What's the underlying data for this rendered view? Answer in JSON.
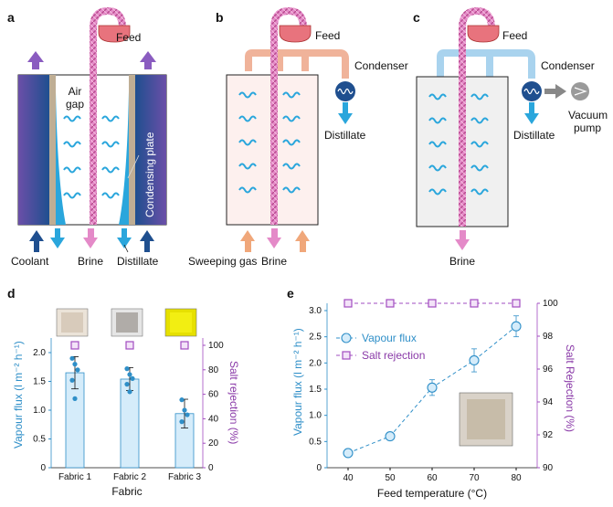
{
  "panels": {
    "a": {
      "letter": "a",
      "labels": {
        "feed": "Feed",
        "air_gap_line1": "Air",
        "air_gap_line2": "gap",
        "condensing_plate": "Condensing plate",
        "coolant": "Coolant",
        "brine": "Brine",
        "distillate": "Distillate"
      }
    },
    "b": {
      "letter": "b",
      "labels": {
        "feed": "Feed",
        "condenser": "Condenser",
        "distillate": "Distillate",
        "sweeping_gas": "Sweeping gas",
        "brine": "Brine"
      }
    },
    "c": {
      "letter": "c",
      "labels": {
        "feed": "Feed",
        "condenser": "Condenser",
        "distillate": "Distillate",
        "vacuum_pump_line1": "Vacuum",
        "vacuum_pump_line2": "pump",
        "brine": "Brine"
      }
    },
    "d": {
      "letter": "d"
    },
    "e": {
      "letter": "e"
    }
  },
  "colors": {
    "coolant_blue": "#1f4f8f",
    "stream_blue": "#2aa6dc",
    "feed_pink": "#e48ac8",
    "vapour_purple": "#8a5cc0",
    "sweeping_orange": "#f0a77a",
    "salt_purple": "#a24cc0",
    "flux_blue": "#2f8fc8"
  },
  "chart_data": [
    {
      "type": "bar",
      "panel": "d",
      "xlabel": "Fabric",
      "ylabel": "Vapour flux (l m⁻² h⁻¹)",
      "ylabel2": "Salt rejection (%)",
      "categories": [
        "Fabric 1",
        "Fabric 2",
        "Fabric 3"
      ],
      "series": [
        {
          "name": "Vapour flux",
          "axis": "left",
          "values": [
            1.65,
            1.54,
            0.94
          ],
          "errors": [
            0.28,
            0.2,
            0.25
          ],
          "points": [
            [
              1.9,
              1.8,
              1.7,
              1.52,
              1.2
            ],
            [
              1.72,
              1.62,
              1.55,
              1.45,
              1.32
            ],
            [
              1.18,
              1.0,
              0.92,
              0.8
            ]
          ]
        },
        {
          "name": "Salt rejection",
          "axis": "right",
          "values": [
            100,
            100,
            100
          ]
        }
      ],
      "y_ticks": [
        "0",
        "0.5",
        "1.0",
        "1.5",
        "2.0"
      ],
      "y2_ticks": [
        "0",
        "20",
        "40",
        "60",
        "80",
        "100"
      ],
      "ylim": [
        0,
        2.3
      ],
      "y2lim": [
        0,
        115
      ],
      "grid": false
    },
    {
      "type": "line",
      "panel": "e",
      "xlabel": "Feed temperature (°C)",
      "ylabel": "Vapour flux (l m⁻² h⁻¹)",
      "ylabel2": "Salt Rejection (%)",
      "x": [
        40,
        50,
        60,
        70,
        80
      ],
      "series": [
        {
          "name": "Vapour flux",
          "axis": "left",
          "values": [
            0.28,
            0.6,
            1.53,
            2.05,
            2.7
          ],
          "errors": [
            0.05,
            0.05,
            0.15,
            0.22,
            0.2
          ]
        },
        {
          "name": "Salt rejection",
          "axis": "right",
          "values": [
            100,
            100,
            100,
            100,
            100
          ]
        }
      ],
      "x_ticks": [
        "40",
        "50",
        "60",
        "70",
        "80"
      ],
      "y_ticks": [
        "0",
        "0.5",
        "1.0",
        "1.5",
        "2.0",
        "2.5",
        "3.0"
      ],
      "y2_ticks": [
        "90",
        "92",
        "94",
        "96",
        "98",
        "100"
      ],
      "xlim": [
        35,
        85
      ],
      "ylim": [
        0,
        3.2
      ],
      "y2lim": [
        90,
        100.6
      ],
      "legend_placement": "top-left",
      "grid": false
    }
  ]
}
